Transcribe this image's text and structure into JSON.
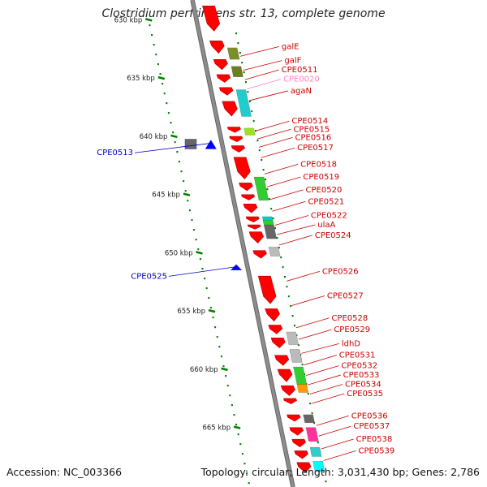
{
  "title": "Clostridium perfringens str. 13, complete genome",
  "footer": {
    "accession": "Accession: NC_003366",
    "topology": "Topology: circular; Length: 3,031,430 bp; Genes: 2,786"
  },
  "colors": {
    "forward_gene": "#ff0000",
    "reverse_gene": "#0000ff",
    "backbone": "#8c8c8c",
    "tick": "#008000",
    "label_forward": "#cc0000",
    "label_reverse": "#0000cc",
    "label_highlight": "#ff80c0"
  },
  "scale": {
    "unit": "kbp",
    "ticks": [
      {
        "text": "630 kbp",
        "kbp": 630
      },
      {
        "text": "635 kbp",
        "kbp": 635
      },
      {
        "text": "640 kbp",
        "kbp": 640
      },
      {
        "text": "645 kbp",
        "kbp": 645
      },
      {
        "text": "650 kbp",
        "kbp": 650
      },
      {
        "text": "655 kbp",
        "kbp": 655
      },
      {
        "text": "660 kbp",
        "kbp": 660
      },
      {
        "text": "665 kbp",
        "kbp": 665
      }
    ]
  },
  "forward_labels": [
    {
      "text": "galE",
      "kbp": 632.3
    },
    {
      "text": "galF",
      "kbp": 633.5
    },
    {
      "text": "CPE0511",
      "kbp": 634.3
    },
    {
      "text": "CPE0020",
      "kbp": 635.1,
      "highlight": true
    },
    {
      "text": "agaN",
      "kbp": 636.1
    },
    {
      "text": "CPE0514",
      "kbp": 638.7
    },
    {
      "text": "CPE0515",
      "kbp": 639.4
    },
    {
      "text": "CPE0516",
      "kbp": 640.1
    },
    {
      "text": "CPE0517",
      "kbp": 641.0
    },
    {
      "text": "CPE0518",
      "kbp": 642.4
    },
    {
      "text": "CPE0519",
      "kbp": 643.5
    },
    {
      "text": "CPE0520",
      "kbp": 644.6
    },
    {
      "text": "CPE0521",
      "kbp": 645.6
    },
    {
      "text": "CPE0522",
      "kbp": 646.8
    },
    {
      "text": "ulaA",
      "kbp": 647.6
    },
    {
      "text": "CPE0524",
      "kbp": 648.5
    },
    {
      "text": "CPE0526",
      "kbp": 651.6
    },
    {
      "text": "CPE0527",
      "kbp": 653.7
    },
    {
      "text": "CPE0528",
      "kbp": 655.6
    },
    {
      "text": "CPE0529",
      "kbp": 656.6
    },
    {
      "text": "ldhD",
      "kbp": 657.8
    },
    {
      "text": "CPE0531",
      "kbp": 658.8
    },
    {
      "text": "CPE0532",
      "kbp": 659.7
    },
    {
      "text": "CPE0533",
      "kbp": 660.5
    },
    {
      "text": "CPE0534",
      "kbp": 661.3
    },
    {
      "text": "CPE0535",
      "kbp": 662.1
    },
    {
      "text": "CPE0536",
      "kbp": 664.0
    },
    {
      "text": "CPE0537",
      "kbp": 664.9
    },
    {
      "text": "CPE0538",
      "kbp": 666.0
    },
    {
      "text": "CPE0539",
      "kbp": 667.0
    }
  ],
  "reverse_labels": [
    {
      "text": "CPE0513",
      "kbp": 641.0
    },
    {
      "text": "CPE0525",
      "kbp": 651.6
    }
  ]
}
